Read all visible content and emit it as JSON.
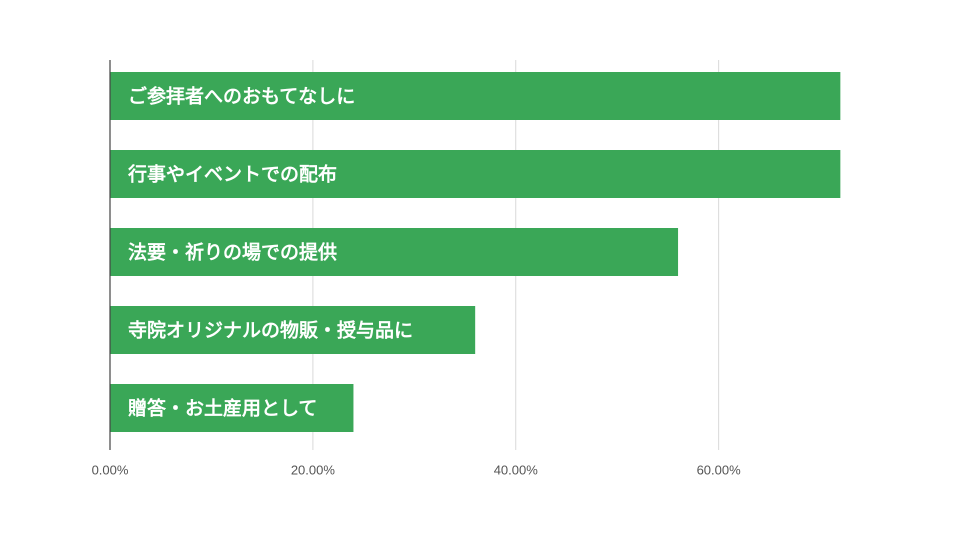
{
  "chart_data": {
    "type": "bar",
    "orientation": "horizontal",
    "categories": [
      "ご参拝者へのおもてなしに",
      "行事やイベントでの配布",
      "法要・祈りの場での提供",
      "寺院オリジナルの物販・授与品に",
      "贈答・お土産用として"
    ],
    "values": [
      72.0,
      72.0,
      56.0,
      36.0,
      24.0
    ],
    "x_ticks": [
      "0.00%",
      "20.00%",
      "40.00%",
      "60.00%"
    ],
    "xlim": [
      0,
      80
    ],
    "grid": true,
    "bar_color": "#3aa757",
    "grid_color": "#d9d9d9",
    "axis_color": "#444444"
  }
}
